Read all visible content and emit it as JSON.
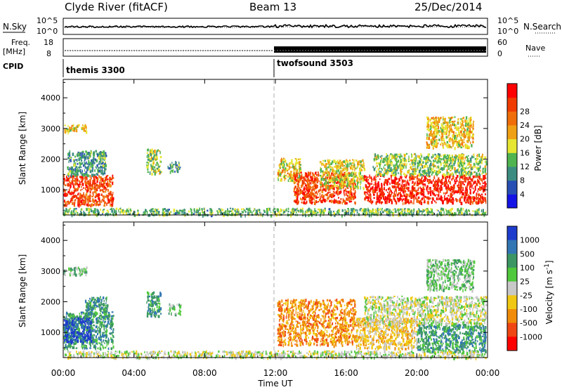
{
  "header": {
    "station": "Clyde River (fitACF)",
    "beam": "Beam 13",
    "date": "25/Dec/2014"
  },
  "noise_panel": {
    "left_label": "N.Sky",
    "right_label": "N.Search",
    "left_ticks": [
      "10^5",
      "10^0"
    ],
    "right_ticks": [
      "10^5",
      "10^0"
    ]
  },
  "freq_panel": {
    "left_label_line1": "Freq.",
    "left_label_line2": "[MHz]",
    "left_ticks": [
      "18",
      "8"
    ],
    "right_label": "Nave",
    "right_ticks": [
      "60",
      "0"
    ]
  },
  "cpid_panel": {
    "label": "CPID",
    "programs": [
      {
        "name": "themis 3300",
        "start_hour": 0
      },
      {
        "name": "twofsound 3503",
        "start_hour": 12
      }
    ]
  },
  "chart_data": [
    {
      "type": "heatmap",
      "name": "power",
      "ylabel": "Slant Range [km]",
      "xlabel": "Time UT",
      "xlim": [
        0,
        24
      ],
      "ylim": [
        180,
        4600
      ],
      "yticks": [
        "1000",
        "2000",
        "3000",
        "4000"
      ],
      "xticks": [
        "00:00",
        "04:00",
        "08:00",
        "12:00",
        "16:00",
        "20:00",
        "00:00"
      ],
      "colorbar": {
        "label": "Power [dB]",
        "range": [
          0,
          32
        ],
        "ticks": [
          "4",
          "8",
          "12",
          "16",
          "20",
          "24",
          "28"
        ],
        "colors": [
          "#1414e6",
          "#2850b4",
          "#3c8c82",
          "#50b450",
          "#e6e632",
          "#f0a014",
          "#f06e0a",
          "#f03c00",
          "#ff0000"
        ]
      },
      "scatter_regions": [
        {
          "t0": 0.0,
          "t1": 2.8,
          "r0": 500,
          "r1": 1500,
          "value": 26
        },
        {
          "t0": 0.2,
          "t1": 2.4,
          "r0": 1500,
          "r1": 2300,
          "value": 10
        },
        {
          "t0": 0.0,
          "t1": 1.3,
          "r0": 2900,
          "r1": 3150,
          "value": 18
        },
        {
          "t0": 4.7,
          "t1": 5.5,
          "r0": 1550,
          "r1": 2350,
          "value": 14
        },
        {
          "t0": 5.9,
          "t1": 6.6,
          "r0": 1600,
          "r1": 1950,
          "value": 10
        },
        {
          "t0": 12.1,
          "t1": 13.4,
          "r0": 1300,
          "r1": 2050,
          "value": 18
        },
        {
          "t0": 13.0,
          "t1": 16.5,
          "r0": 600,
          "r1": 1600,
          "value": 26
        },
        {
          "t0": 14.5,
          "t1": 17.0,
          "r0": 1100,
          "r1": 2000,
          "value": 16
        },
        {
          "t0": 17.0,
          "t1": 23.9,
          "r0": 600,
          "r1": 1500,
          "value": 29
        },
        {
          "t0": 17.5,
          "t1": 23.9,
          "r0": 1500,
          "r1": 2200,
          "value": 14
        },
        {
          "t0": 20.5,
          "t1": 23.2,
          "r0": 2400,
          "r1": 3400,
          "value": 18
        },
        {
          "t0": 0.0,
          "t1": 23.9,
          "r0": 200,
          "r1": 420,
          "value": 12
        }
      ]
    },
    {
      "type": "heatmap",
      "name": "velocity",
      "ylabel": "Slant Range [km]",
      "xlabel": "Time UT",
      "xlim": [
        0,
        24
      ],
      "ylim": [
        180,
        4600
      ],
      "yticks": [
        "1000",
        "2000",
        "3000",
        "4000"
      ],
      "xticks": [
        "00:00",
        "04:00",
        "08:00",
        "12:00",
        "16:00",
        "20:00",
        "00:00"
      ],
      "colorbar": {
        "label": "Velocity [m s^-1]",
        "ticks": [
          "1000",
          "500",
          "100",
          "25",
          "-25",
          "-100",
          "-500",
          "-1000"
        ],
        "colors": [
          "#1e3ccc",
          "#3276b4",
          "#3c9664",
          "#50c83c",
          "#c8c8c8",
          "#f0c814",
          "#f08c0a",
          "#f04614",
          "#ff0000"
        ]
      },
      "scatter_regions": [
        {
          "t0": 0.0,
          "t1": 2.8,
          "r0": 500,
          "r1": 1700,
          "value_index": 2
        },
        {
          "t0": 0.0,
          "t1": 1.6,
          "r0": 700,
          "r1": 1500,
          "value_index": 0
        },
        {
          "t0": 1.2,
          "t1": 2.5,
          "r0": 1500,
          "r1": 2200,
          "value_index": 2
        },
        {
          "t0": 0.0,
          "t1": 1.3,
          "r0": 2900,
          "r1": 3150,
          "value_index": 3
        },
        {
          "t0": 4.7,
          "t1": 5.5,
          "r0": 1550,
          "r1": 2350,
          "value_index": 2
        },
        {
          "t0": 5.9,
          "t1": 6.6,
          "r0": 1600,
          "r1": 1950,
          "value_index": 3
        },
        {
          "t0": 12.1,
          "t1": 16.5,
          "r0": 600,
          "r1": 2100,
          "value_index": 6
        },
        {
          "t0": 16.5,
          "t1": 20.0,
          "r0": 500,
          "r1": 1500,
          "value_index": 5
        },
        {
          "t0": 20.0,
          "t1": 23.9,
          "r0": 400,
          "r1": 1300,
          "value_index": 2
        },
        {
          "t0": 17.0,
          "t1": 23.9,
          "r0": 1300,
          "r1": 2200,
          "value_index": 4
        },
        {
          "t0": 20.5,
          "t1": 23.2,
          "r0": 2400,
          "r1": 3400,
          "value_index": 3
        },
        {
          "t0": 0.0,
          "t1": 23.9,
          "r0": 200,
          "r1": 420,
          "value_index": 4
        }
      ]
    }
  ],
  "time_axis_label": "Time UT"
}
